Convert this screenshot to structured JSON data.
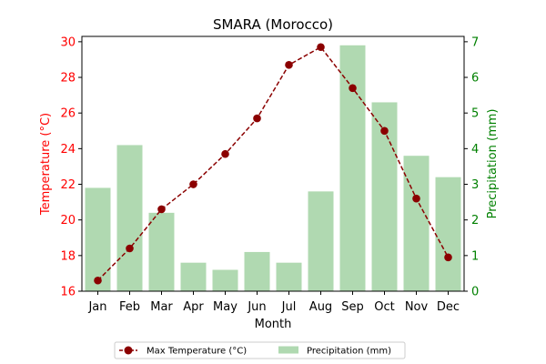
{
  "chart_data": {
    "type": "bar",
    "title": "SMARA (Morocco)",
    "xlabel": "Month",
    "ylabel_left": "Temperature (°C)",
    "ylabel_right": "Precipitation (mm)",
    "categories": [
      "Jan",
      "Feb",
      "Mar",
      "Apr",
      "May",
      "Jun",
      "Jul",
      "Aug",
      "Sep",
      "Oct",
      "Nov",
      "Dec"
    ],
    "series": [
      {
        "name": "Max Temperature (°C)",
        "type": "line",
        "axis": "left",
        "values": [
          16.6,
          18.4,
          20.6,
          22.0,
          23.7,
          25.7,
          28.7,
          29.7,
          27.4,
          25.0,
          21.2,
          17.9
        ],
        "color": "#8b0000"
      },
      {
        "name": "Precipitation (mm)",
        "type": "bar",
        "axis": "right",
        "values": [
          2.9,
          4.1,
          2.2,
          0.8,
          0.6,
          1.1,
          0.8,
          2.8,
          6.9,
          5.3,
          3.8,
          3.2
        ],
        "color": "#b0d9b1"
      }
    ],
    "ylim_left": [
      16,
      30.3
    ],
    "yticks_left": [
      16,
      18,
      20,
      22,
      24,
      26,
      28,
      30
    ],
    "ylim_right": [
      0,
      7.15
    ],
    "yticks_right": [
      0,
      1,
      2,
      3,
      4,
      5,
      6,
      7
    ],
    "left_axis_color": "#ff0000",
    "right_axis_color": "#008000",
    "grid": false,
    "legend_position": "bottom-center"
  }
}
